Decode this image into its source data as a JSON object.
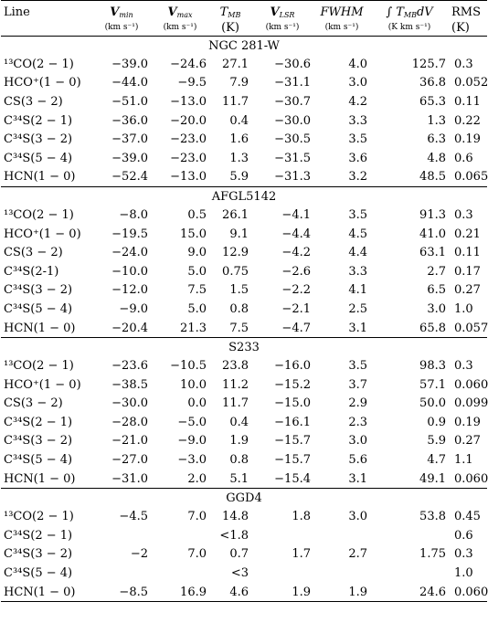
{
  "table": {
    "headers": [
      {
        "main": "Line",
        "sub": "",
        "italic": false
      },
      {
        "main": "Vmin",
        "sub": "(km s⁻¹)",
        "italic": true
      },
      {
        "main": "Vmax",
        "sub": "(km s⁻¹)",
        "italic": true
      },
      {
        "main": "TMB",
        "sub": "(K)",
        "italic": true
      },
      {
        "main": "VLSR",
        "sub": "(km s⁻¹)",
        "italic": true
      },
      {
        "main": "FWHM",
        "sub": "(km s⁻¹)",
        "italic": true
      },
      {
        "main": "∫TMBdV",
        "sub": "(K km s⁻¹)",
        "italic": true
      },
      {
        "main": "RMS",
        "sub": "(K)",
        "italic": false
      }
    ],
    "sections": [
      {
        "name": "NGC 281-W",
        "rows": [
          [
            "¹³CO(2 − 1)",
            "−39.0",
            "−24.6",
            "27.1",
            "−30.6",
            "4.0",
            "125.7",
            "0.3"
          ],
          [
            "HCO⁺(1 − 0)",
            "−44.0",
            "−9.5",
            "7.9",
            "−31.1",
            "3.0",
            "36.8",
            "0.052"
          ],
          [
            "CS(3 − 2)",
            "−51.0",
            "−13.0",
            "11.7",
            "−30.7",
            "4.2",
            "65.3",
            "0.11"
          ],
          [
            "C³⁴S(2 − 1)",
            "−36.0",
            "−20.0",
            "0.4",
            "−30.0",
            "3.3",
            "1.3",
            "0.22"
          ],
          [
            "C³⁴S(3 − 2)",
            "−37.0",
            "−23.0",
            "1.6",
            "−30.5",
            "3.5",
            "6.3",
            "0.19"
          ],
          [
            "C³⁴S(5 − 4)",
            "−39.0",
            "−23.0",
            "1.3",
            "−31.5",
            "3.6",
            "4.8",
            "0.6"
          ],
          [
            "HCN(1 − 0)",
            "−52.4",
            "−13.0",
            "5.9",
            "−31.3",
            "3.2",
            "48.5",
            "0.065"
          ]
        ]
      },
      {
        "name": "AFGL5142",
        "rows": [
          [
            "¹³CO(2 − 1)",
            "−8.0",
            "0.5",
            "26.1",
            "−4.1",
            "3.5",
            "91.3",
            "0.3"
          ],
          [
            "HCO⁺(1 − 0)",
            "−19.5",
            "15.0",
            "9.1",
            "−4.4",
            "4.5",
            "41.0",
            "0.21"
          ],
          [
            "CS(3 − 2)",
            "−24.0",
            "9.0",
            "12.9",
            "−4.2",
            "4.4",
            "63.1",
            "0.11"
          ],
          [
            "C³⁴S(2-1)",
            "−10.0",
            "5.0",
            "0.75",
            "−2.6",
            "3.3",
            "2.7",
            "0.17"
          ],
          [
            "C³⁴S(3 − 2)",
            "−12.0",
            "7.5",
            "1.5",
            "−2.2",
            "4.1",
            "6.5",
            "0.27"
          ],
          [
            "C³⁴S(5 − 4)",
            "−9.0",
            "5.0",
            "0.8",
            "−2.1",
            "2.5",
            "3.0",
            "1.0"
          ],
          [
            "HCN(1 − 0)",
            "−20.4",
            "21.3",
            "7.5",
            "−4.7",
            "3.1",
            "65.8",
            "0.057"
          ]
        ]
      },
      {
        "name": "S233",
        "rows": [
          [
            "¹³CO(2 − 1)",
            "−23.6",
            "−10.5",
            "23.8",
            "−16.0",
            "3.5",
            "98.3",
            "0.3"
          ],
          [
            "HCO⁺(1 − 0)",
            "−38.5",
            "10.0",
            "11.2",
            "−15.2",
            "3.7",
            "57.1",
            "0.060"
          ],
          [
            "CS(3 − 2)",
            "−30.0",
            "0.0",
            "11.7",
            "−15.0",
            "2.9",
            "50.0",
            "0.099"
          ],
          [
            "C³⁴S(2 − 1)",
            "−28.0",
            "−5.0",
            "0.4",
            "−16.1",
            "2.3",
            "0.9",
            "0.19"
          ],
          [
            "C³⁴S(3 − 2)",
            "−21.0",
            "−9.0",
            "1.9",
            "−15.7",
            "3.0",
            "5.9",
            "0.27"
          ],
          [
            "C³⁴S(5 − 4)",
            "−27.0",
            "−3.0",
            "0.8",
            "−15.7",
            "5.6",
            "4.7",
            "1.1"
          ],
          [
            "HCN(1 − 0)",
            "−31.0",
            "2.0",
            "5.1",
            "−15.4",
            "3.1",
            "49.1",
            "0.060"
          ]
        ]
      },
      {
        "name": "GGD4",
        "rows": [
          [
            "¹³CO(2 − 1)",
            "−4.5",
            "7.0",
            "14.8",
            "1.8",
            "3.0",
            "53.8",
            "0.45"
          ],
          [
            "C³⁴S(2 − 1)",
            "",
            "",
            "<1.8",
            "",
            "",
            "",
            "0.6"
          ],
          [
            "C³⁴S(3 − 2)",
            "−2",
            "7.0",
            "0.7",
            "1.7",
            "2.7",
            "1.75",
            "0.3"
          ],
          [
            "C³⁴S(5 − 4)",
            "",
            "",
            "<3",
            "",
            "",
            "",
            "1.0"
          ],
          [
            "HCN(1 − 0)",
            "−8.5",
            "16.9",
            "4.6",
            "1.9",
            "1.9",
            "24.6",
            "0.060"
          ]
        ]
      }
    ]
  }
}
